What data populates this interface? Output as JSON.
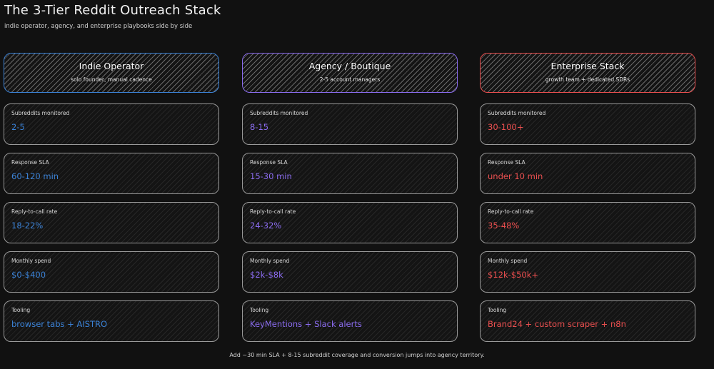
{
  "page": {
    "title": "The 3-Tier Reddit Outreach Stack",
    "subtitle": "indie operator, agency, and enterprise playbooks side by side",
    "footer": "Add ~30 min SLA + 8-15 subreddit coverage and conversion jumps into agency territory."
  },
  "tiers": [
    {
      "name": "Indie Operator",
      "desc": "solo founder, manual cadence",
      "accent": "#3b82d6",
      "metrics": [
        {
          "label": "Subreddits monitored",
          "value": "2-5"
        },
        {
          "label": "Response SLA",
          "value": "60-120 min"
        },
        {
          "label": "Reply-to-call rate",
          "value": "18-22%"
        },
        {
          "label": "Monthly spend",
          "value": "$0-$400"
        },
        {
          "label": "Tooling",
          "value": "browser tabs + AISTRO"
        }
      ]
    },
    {
      "name": "Agency / Boutique",
      "desc": "2-5 account managers",
      "accent": "#8b6cf0",
      "metrics": [
        {
          "label": "Subreddits monitored",
          "value": "8-15"
        },
        {
          "label": "Response SLA",
          "value": "15-30 min"
        },
        {
          "label": "Reply-to-call rate",
          "value": "24-32%"
        },
        {
          "label": "Monthly spend",
          "value": "$2k-$8k"
        },
        {
          "label": "Tooling",
          "value": "KeyMentions + Slack alerts"
        }
      ]
    },
    {
      "name": "Enterprise Stack",
      "desc": "growth team + dedicated SDRs",
      "accent": "#ea4f4f",
      "metrics": [
        {
          "label": "Subreddits monitored",
          "value": "30-100+"
        },
        {
          "label": "Response SLA",
          "value": "under 10 min"
        },
        {
          "label": "Reply-to-call rate",
          "value": "35-48%"
        },
        {
          "label": "Monthly spend",
          "value": "$12k-$50k+"
        },
        {
          "label": "Tooling",
          "value": "Brand24 + custom scraper + n8n"
        }
      ]
    }
  ]
}
